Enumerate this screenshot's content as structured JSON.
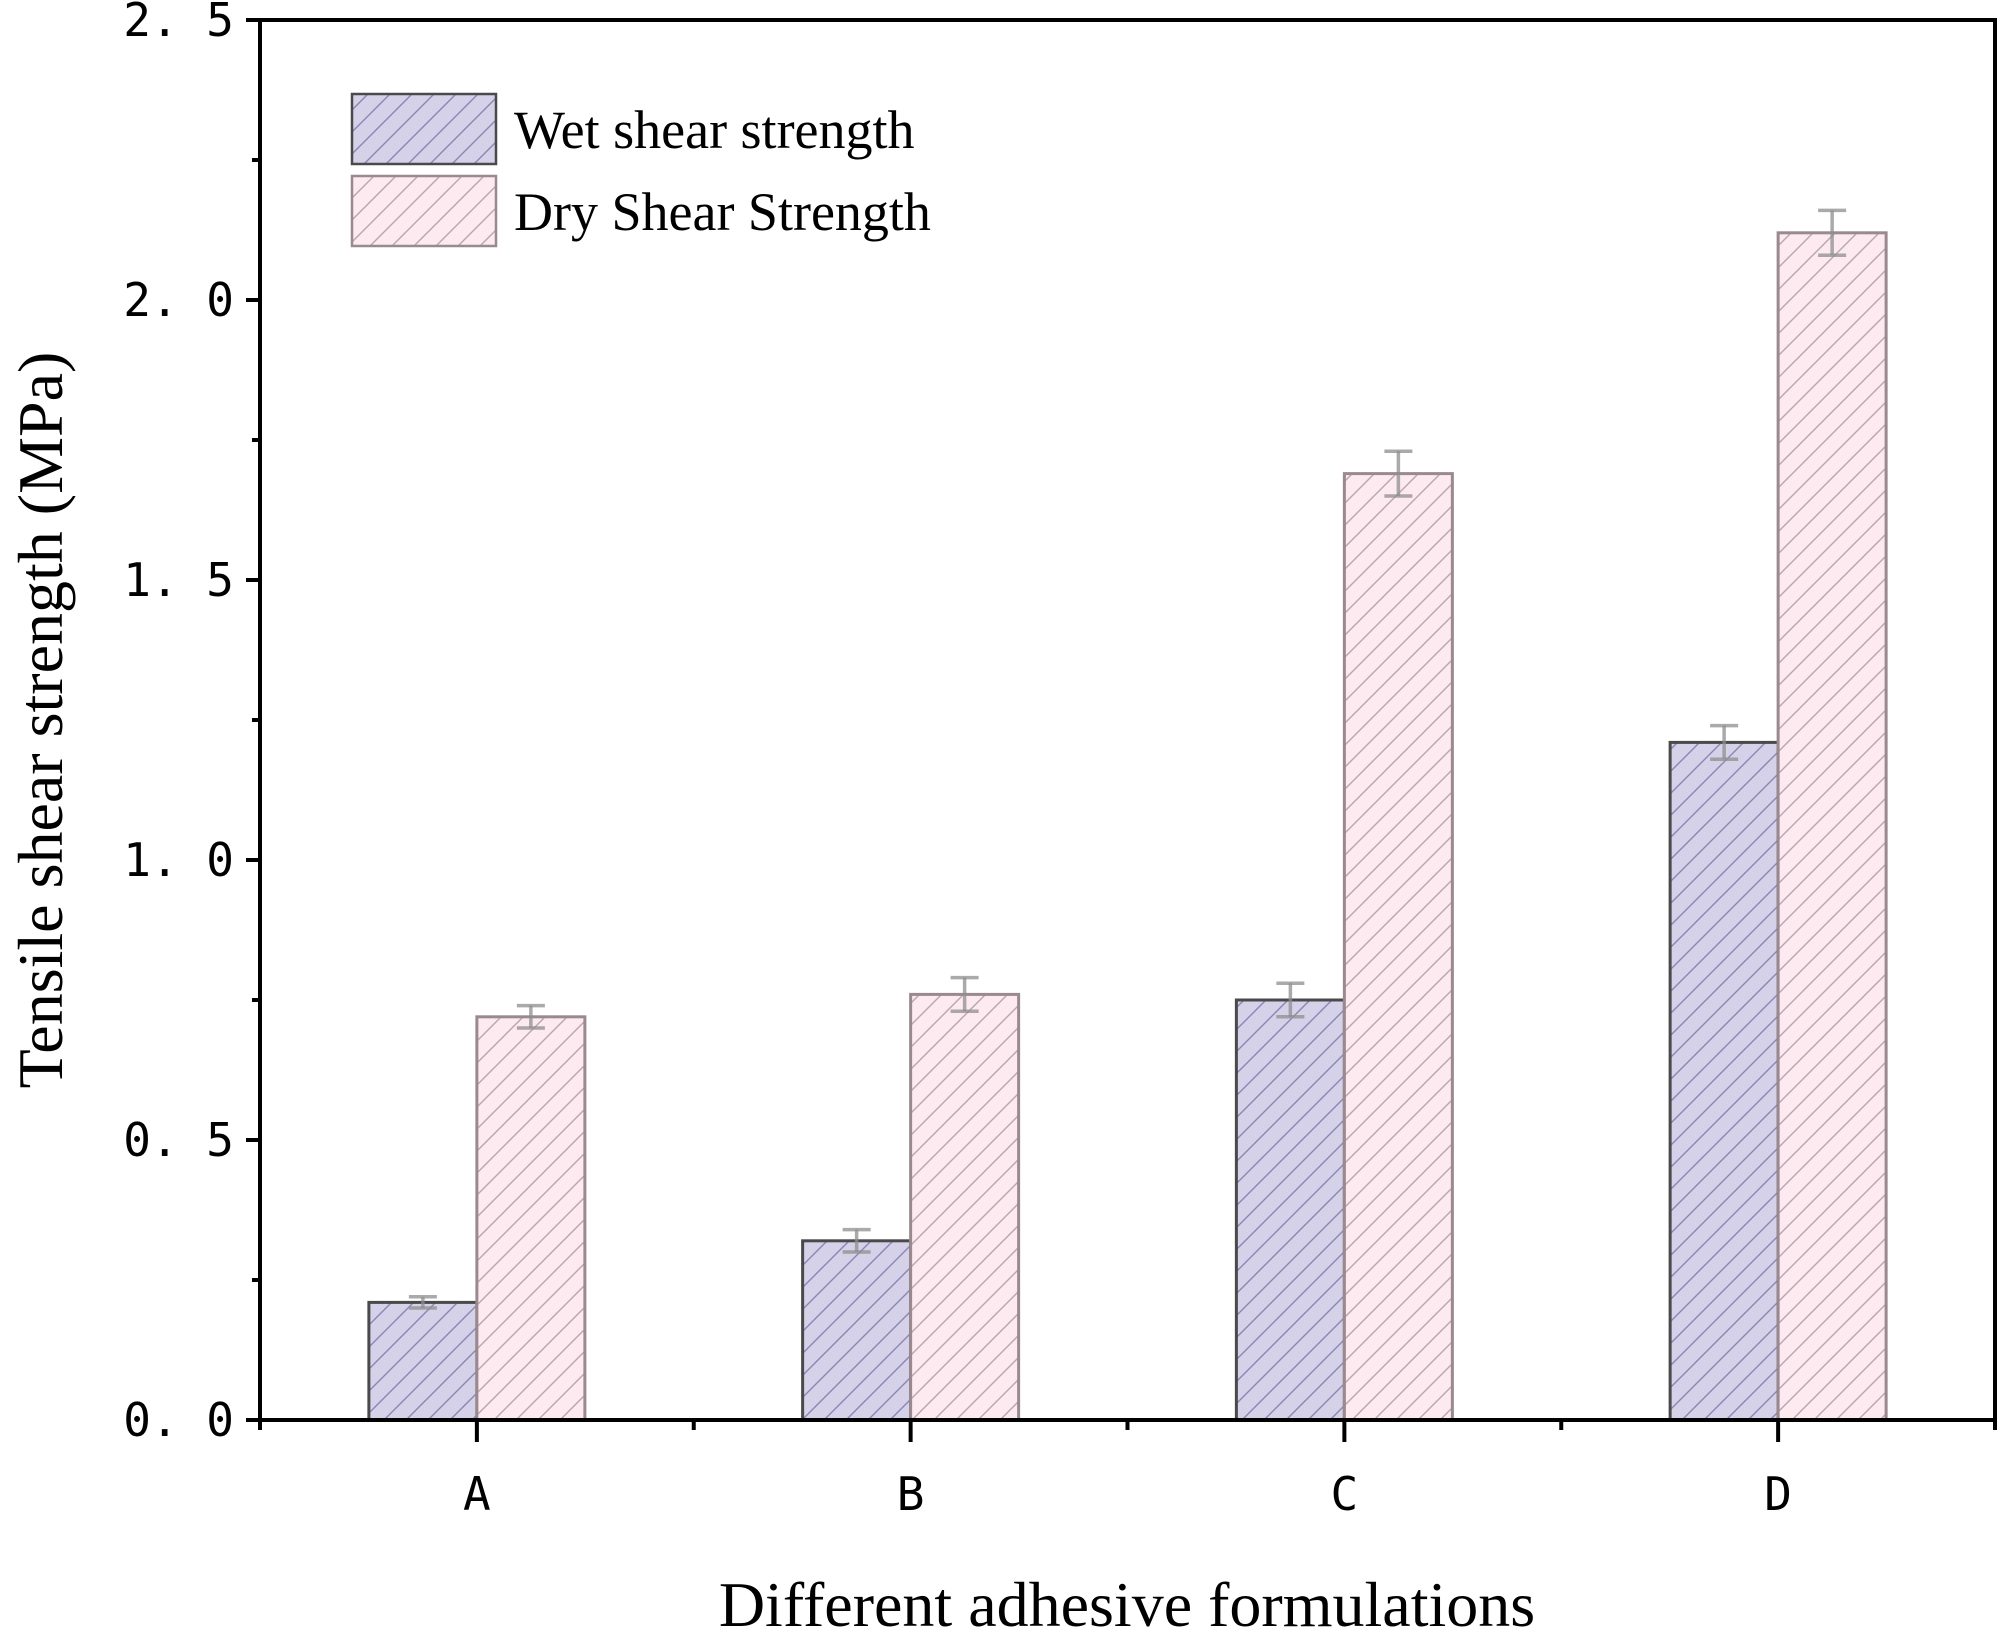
{
  "chart_data": {
    "type": "bar",
    "title": "",
    "xlabel": "Different adhesive formulations",
    "ylabel": "Tensile shear strength (MPa)",
    "categories": [
      "A",
      "B",
      "C",
      "D"
    ],
    "ylim": [
      0,
      2.5
    ],
    "yticks": [
      0.0,
      0.5,
      1.0,
      1.5,
      2.0,
      2.5
    ],
    "ytick_labels": [
      "0. 0",
      "0. 5",
      "1. 0",
      "1. 5",
      "2. 0",
      "2. 5"
    ],
    "grid": false,
    "legend_position": "top-left",
    "series": [
      {
        "name": "Wet shear strength",
        "values": [
          0.21,
          0.32,
          0.75,
          1.21
        ],
        "errors": [
          0.01,
          0.02,
          0.03,
          0.03
        ],
        "fill": "#d4d1e8",
        "hatch": "#8a87b4",
        "edge": "#4a4a4a"
      },
      {
        "name": "Dry Shear Strength",
        "values": [
          0.72,
          0.76,
          1.69,
          2.12
        ],
        "errors": [
          0.02,
          0.03,
          0.04,
          0.04
        ],
        "fill": "#fde9f0",
        "hatch": "#b9a5ad",
        "edge": "#9a8a90"
      }
    ]
  }
}
